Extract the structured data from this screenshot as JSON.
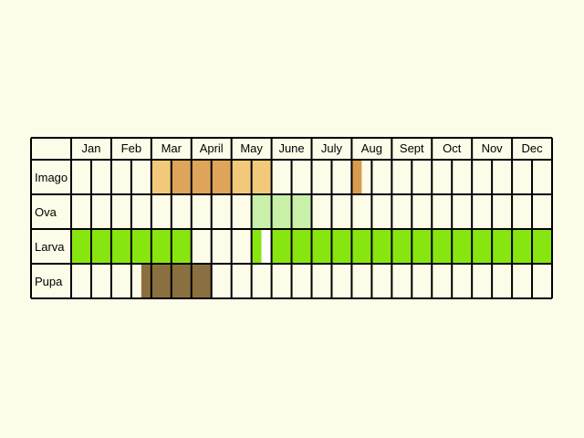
{
  "chart_data": {
    "type": "table",
    "title": "",
    "months": [
      "Jan",
      "Feb",
      "Mar",
      "April",
      "May",
      "June",
      "July",
      "Aug",
      "Sept",
      "Oct",
      "Nov",
      "Dec"
    ],
    "slots_per_month": 2,
    "rows": [
      {
        "label": "Imago",
        "fills": [
          {
            "month_start": 3.0,
            "month_end": 3.5,
            "color": "#f2c97a"
          },
          {
            "month_start": 3.5,
            "month_end": 5.0,
            "color": "#dea45a"
          },
          {
            "month_start": 5.0,
            "month_end": 6.0,
            "color": "#f2c97a"
          },
          {
            "month_start": 8.0,
            "month_end": 8.25,
            "color": "#d79b50"
          }
        ]
      },
      {
        "label": "Ova",
        "fills": [
          {
            "month_start": 5.5,
            "month_end": 7.0,
            "color": "#c8f0a8"
          }
        ]
      },
      {
        "label": "Larva",
        "fills": [
          {
            "month_start": 1.0,
            "month_end": 4.0,
            "color": "#88e610"
          },
          {
            "month_start": 5.5,
            "month_end": 5.75,
            "color": "#88e610"
          },
          {
            "month_start": 5.75,
            "month_end": 5.95,
            "color": "#ffffff"
          },
          {
            "month_start": 6.0,
            "month_end": 13.0,
            "color": "#88e610"
          }
        ]
      },
      {
        "label": "Pupa",
        "fills": [
          {
            "month_start": 2.75,
            "month_end": 4.5,
            "color": "#8a7040"
          }
        ]
      }
    ]
  }
}
